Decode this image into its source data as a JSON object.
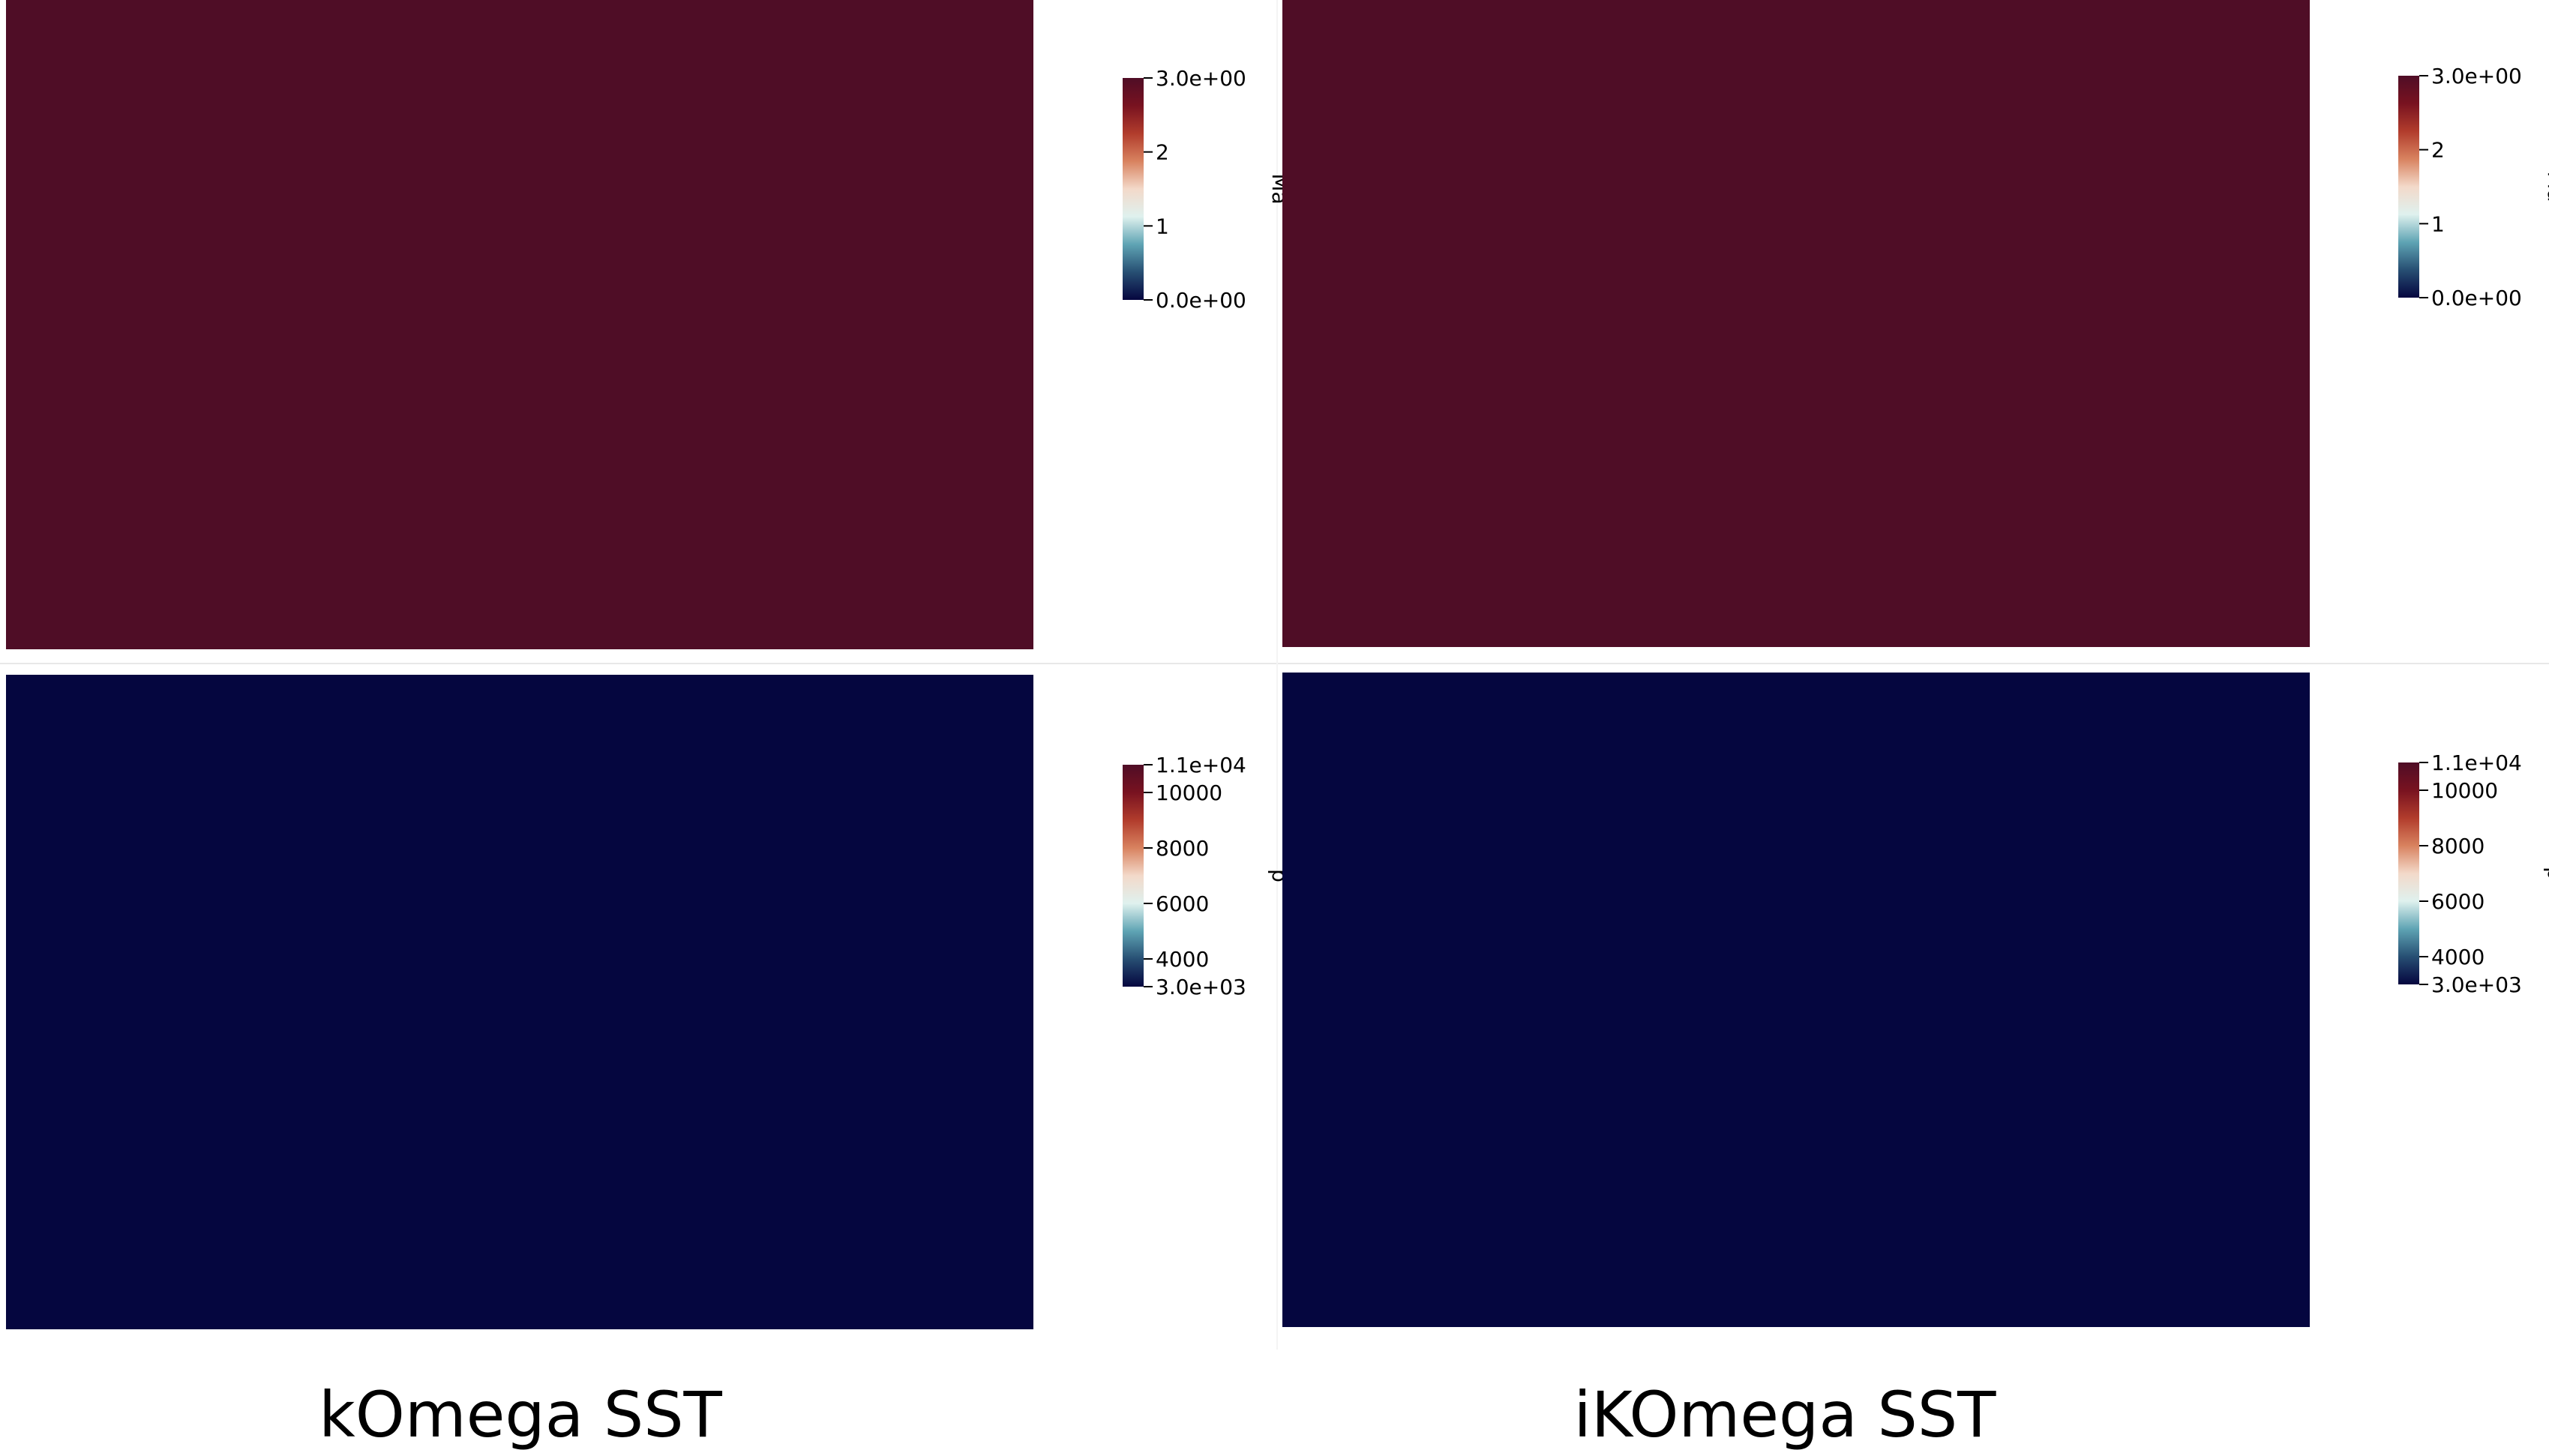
{
  "colors": {
    "ma": [
      "#05063f",
      "#274f73",
      "#5fa4b4",
      "#dff1ee",
      "#f3d9c9",
      "#d8825f",
      "#b13c2c",
      "#781220",
      "#4f0d26"
    ],
    "p": [
      "#05063f",
      "#274f73",
      "#5fa4b4",
      "#dff1ee",
      "#f3d9c9",
      "#d8825f",
      "#b13c2c",
      "#781220",
      "#4f0d26"
    ],
    "domain_inlet_ma": "#4f0d26",
    "domain_inlet_p": "#05063f",
    "divider": "#e8e8e8"
  },
  "colorbars": {
    "ma": {
      "title": "Ma",
      "ticks": [
        "3.0e+00",
        "2",
        "1",
        "0.0e+00"
      ]
    },
    "p": {
      "title": "p",
      "ticks": [
        "1.1e+04",
        "10000",
        "8000",
        "6000",
        "4000",
        "3.0e+03"
      ]
    }
  },
  "captions": {
    "left": "kOmega SST",
    "right": "iKOmega SST"
  }
}
